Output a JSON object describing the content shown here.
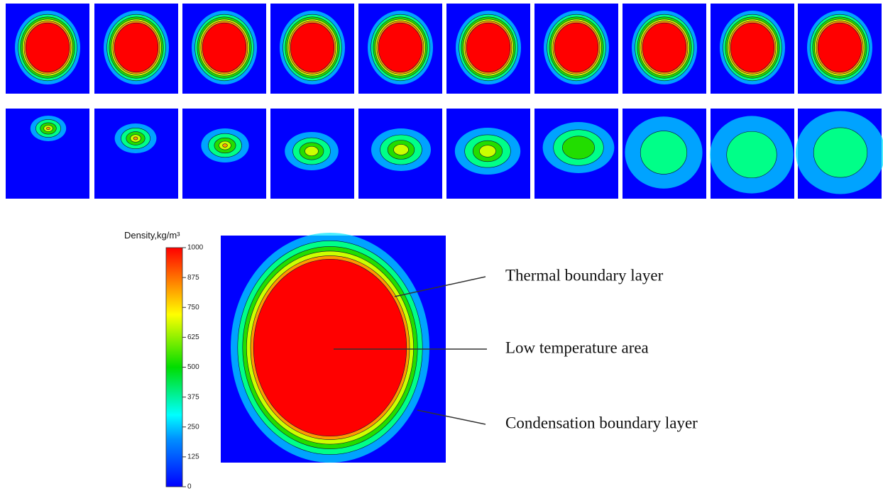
{
  "colorbar": {
    "title": "Density,kg/m³",
    "range": [
      0,
      1000
    ],
    "ticks": [
      1000,
      875,
      750,
      625,
      500,
      375,
      250,
      125,
      0
    ]
  },
  "annotations": [
    "Thermal boundary layer",
    "Low temperature area",
    "Condensation boundary layer"
  ]
}
